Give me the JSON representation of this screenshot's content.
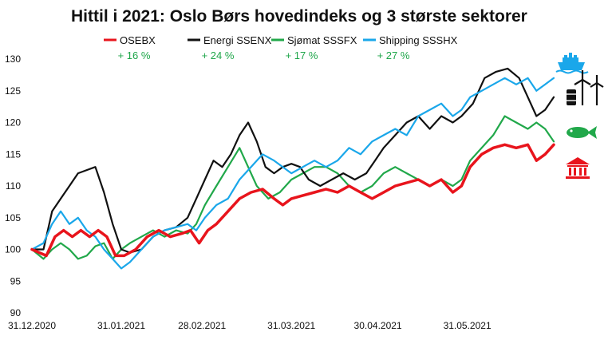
{
  "chart_data": {
    "type": "line",
    "title": "Hittil i 2021: Oslo Børs hovedindeks og 3 største sektorer",
    "xlabel": "",
    "ylabel": "",
    "ylim": [
      90,
      130
    ],
    "yticks": [
      90,
      95,
      100,
      105,
      110,
      115,
      120,
      125,
      130
    ],
    "xrange": [
      "2020-12-31",
      "2021-06-30"
    ],
    "xtick_labels": [
      {
        "date": "2020-12-31",
        "label": "31.12.2020"
      },
      {
        "date": "2021-01-31",
        "label": "31.01.2021"
      },
      {
        "date": "2021-02-28",
        "label": "28.02.2021"
      },
      {
        "date": "2021-03-31",
        "label": "31.03.2021"
      },
      {
        "date": "2021-04-30",
        "label": "30.04.2021"
      },
      {
        "date": "2021-05-31",
        "label": "31.05.2021"
      }
    ],
    "grid": false,
    "legend_position": "top",
    "series": [
      {
        "name": "OSEBX",
        "change": "+ 16 %",
        "color": "#e8141c",
        "icon": "bank-icon",
        "points": [
          [
            "2020-12-31",
            100
          ],
          [
            "2021-01-05",
            99
          ],
          [
            "2021-01-08",
            102
          ],
          [
            "2021-01-11",
            103
          ],
          [
            "2021-01-14",
            102
          ],
          [
            "2021-01-17",
            103
          ],
          [
            "2021-01-20",
            102
          ],
          [
            "2021-01-23",
            103
          ],
          [
            "2021-01-26",
            102
          ],
          [
            "2021-01-29",
            99
          ],
          [
            "2021-02-01",
            99
          ],
          [
            "2021-02-05",
            100
          ],
          [
            "2021-02-09",
            102
          ],
          [
            "2021-02-13",
            103
          ],
          [
            "2021-02-17",
            102
          ],
          [
            "2021-02-21",
            102.5
          ],
          [
            "2021-02-24",
            103
          ],
          [
            "2021-02-27",
            101
          ],
          [
            "2021-03-02",
            103
          ],
          [
            "2021-03-05",
            104
          ],
          [
            "2021-03-09",
            106
          ],
          [
            "2021-03-13",
            108
          ],
          [
            "2021-03-17",
            109
          ],
          [
            "2021-03-21",
            109.5
          ],
          [
            "2021-03-25",
            108
          ],
          [
            "2021-03-28",
            107
          ],
          [
            "2021-03-31",
            108
          ],
          [
            "2021-04-04",
            108.5
          ],
          [
            "2021-04-08",
            109
          ],
          [
            "2021-04-12",
            109.5
          ],
          [
            "2021-04-16",
            109
          ],
          [
            "2021-04-20",
            110
          ],
          [
            "2021-04-24",
            109
          ],
          [
            "2021-04-28",
            108
          ],
          [
            "2021-05-02",
            109
          ],
          [
            "2021-05-06",
            110
          ],
          [
            "2021-05-10",
            110.5
          ],
          [
            "2021-05-14",
            111
          ],
          [
            "2021-05-18",
            110
          ],
          [
            "2021-05-22",
            111
          ],
          [
            "2021-05-26",
            109
          ],
          [
            "2021-05-29",
            110
          ],
          [
            "2021-06-01",
            113
          ],
          [
            "2021-06-05",
            115
          ],
          [
            "2021-06-09",
            116
          ],
          [
            "2021-06-13",
            116.5
          ],
          [
            "2021-06-17",
            116
          ],
          [
            "2021-06-21",
            116.5
          ],
          [
            "2021-06-24",
            114
          ],
          [
            "2021-06-27",
            115
          ],
          [
            "2021-06-30",
            116.5
          ]
        ]
      },
      {
        "name": "Energi SSENX",
        "change": "+ 24 %",
        "color": "#111111",
        "icon": "energy-icon",
        "points": [
          [
            "2020-12-31",
            100
          ],
          [
            "2021-01-04",
            100
          ],
          [
            "2021-01-07",
            106
          ],
          [
            "2021-01-10",
            108
          ],
          [
            "2021-01-13",
            110
          ],
          [
            "2021-01-16",
            112
          ],
          [
            "2021-01-19",
            112.5
          ],
          [
            "2021-01-22",
            113
          ],
          [
            "2021-01-25",
            109
          ],
          [
            "2021-01-28",
            104
          ],
          [
            "2021-01-31",
            100
          ],
          [
            "2021-02-03",
            99.5
          ],
          [
            "2021-02-07",
            100
          ],
          [
            "2021-02-11",
            102
          ],
          [
            "2021-02-15",
            103
          ],
          [
            "2021-02-19",
            103.5
          ],
          [
            "2021-02-23",
            105
          ],
          [
            "2021-02-26",
            108
          ],
          [
            "2021-03-01",
            111
          ],
          [
            "2021-03-04",
            114
          ],
          [
            "2021-03-07",
            113
          ],
          [
            "2021-03-10",
            115
          ],
          [
            "2021-03-13",
            118
          ],
          [
            "2021-03-16",
            120
          ],
          [
            "2021-03-19",
            117
          ],
          [
            "2021-03-22",
            113
          ],
          [
            "2021-03-25",
            112
          ],
          [
            "2021-03-28",
            113
          ],
          [
            "2021-03-31",
            113.5
          ],
          [
            "2021-04-03",
            113
          ],
          [
            "2021-04-06",
            111
          ],
          [
            "2021-04-10",
            110
          ],
          [
            "2021-04-14",
            111
          ],
          [
            "2021-04-18",
            112
          ],
          [
            "2021-04-22",
            111
          ],
          [
            "2021-04-26",
            112
          ],
          [
            "2021-04-29",
            114
          ],
          [
            "2021-05-02",
            116
          ],
          [
            "2021-05-06",
            118
          ],
          [
            "2021-05-10",
            120
          ],
          [
            "2021-05-14",
            121
          ],
          [
            "2021-05-18",
            119
          ],
          [
            "2021-05-22",
            121
          ],
          [
            "2021-05-26",
            120
          ],
          [
            "2021-05-29",
            121
          ],
          [
            "2021-06-02",
            123
          ],
          [
            "2021-06-06",
            127
          ],
          [
            "2021-06-10",
            128
          ],
          [
            "2021-06-14",
            128.5
          ],
          [
            "2021-06-18",
            127
          ],
          [
            "2021-06-21",
            124
          ],
          [
            "2021-06-24",
            121
          ],
          [
            "2021-06-27",
            122
          ],
          [
            "2021-06-30",
            124
          ]
        ]
      },
      {
        "name": "Sjømat SSSFX",
        "change": "+ 17 %",
        "color": "#21a84a",
        "icon": "fish-icon",
        "points": [
          [
            "2020-12-31",
            100
          ],
          [
            "2021-01-04",
            98.5
          ],
          [
            "2021-01-07",
            100
          ],
          [
            "2021-01-10",
            101
          ],
          [
            "2021-01-13",
            100
          ],
          [
            "2021-01-16",
            98.5
          ],
          [
            "2021-01-19",
            99
          ],
          [
            "2021-01-22",
            100.5
          ],
          [
            "2021-01-25",
            101
          ],
          [
            "2021-01-28",
            98.5
          ],
          [
            "2021-01-31",
            100
          ],
          [
            "2021-02-03",
            101
          ],
          [
            "2021-02-07",
            102
          ],
          [
            "2021-02-11",
            103
          ],
          [
            "2021-02-15",
            102
          ],
          [
            "2021-02-19",
            103
          ],
          [
            "2021-02-23",
            102.5
          ],
          [
            "2021-02-26",
            104
          ],
          [
            "2021-03-01",
            107
          ],
          [
            "2021-03-05",
            110
          ],
          [
            "2021-03-09",
            113
          ],
          [
            "2021-03-13",
            116
          ],
          [
            "2021-03-16",
            113
          ],
          [
            "2021-03-19",
            110
          ],
          [
            "2021-03-23",
            108
          ],
          [
            "2021-03-27",
            109
          ],
          [
            "2021-03-31",
            111
          ],
          [
            "2021-04-04",
            112
          ],
          [
            "2021-04-08",
            113
          ],
          [
            "2021-04-12",
            113
          ],
          [
            "2021-04-16",
            112
          ],
          [
            "2021-04-20",
            110
          ],
          [
            "2021-04-24",
            109
          ],
          [
            "2021-04-28",
            110
          ],
          [
            "2021-05-02",
            112
          ],
          [
            "2021-05-06",
            113
          ],
          [
            "2021-05-10",
            112
          ],
          [
            "2021-05-14",
            111
          ],
          [
            "2021-05-18",
            110
          ],
          [
            "2021-05-22",
            111
          ],
          [
            "2021-05-26",
            110
          ],
          [
            "2021-05-29",
            111
          ],
          [
            "2021-06-01",
            114
          ],
          [
            "2021-06-05",
            116
          ],
          [
            "2021-06-09",
            118
          ],
          [
            "2021-06-13",
            121
          ],
          [
            "2021-06-17",
            120
          ],
          [
            "2021-06-21",
            119
          ],
          [
            "2021-06-24",
            120
          ],
          [
            "2021-06-27",
            119
          ],
          [
            "2021-06-30",
            117
          ]
        ]
      },
      {
        "name": "Shipping SSSHX",
        "change": "+ 27 %",
        "color": "#1aa7ea",
        "icon": "ship-icon",
        "points": [
          [
            "2020-12-31",
            100
          ],
          [
            "2021-01-04",
            101
          ],
          [
            "2021-01-07",
            104
          ],
          [
            "2021-01-10",
            106
          ],
          [
            "2021-01-13",
            104
          ],
          [
            "2021-01-16",
            105
          ],
          [
            "2021-01-19",
            103
          ],
          [
            "2021-01-22",
            102
          ],
          [
            "2021-01-25",
            100
          ],
          [
            "2021-01-28",
            98.5
          ],
          [
            "2021-01-31",
            97
          ],
          [
            "2021-02-03",
            98
          ],
          [
            "2021-02-07",
            100
          ],
          [
            "2021-02-11",
            102
          ],
          [
            "2021-02-15",
            103
          ],
          [
            "2021-02-19",
            103.5
          ],
          [
            "2021-02-23",
            104
          ],
          [
            "2021-02-26",
            103
          ],
          [
            "2021-03-01",
            105
          ],
          [
            "2021-03-05",
            107
          ],
          [
            "2021-03-09",
            108
          ],
          [
            "2021-03-13",
            111
          ],
          [
            "2021-03-17",
            113
          ],
          [
            "2021-03-21",
            115
          ],
          [
            "2021-03-25",
            114
          ],
          [
            "2021-03-28",
            113
          ],
          [
            "2021-03-31",
            112
          ],
          [
            "2021-04-04",
            113
          ],
          [
            "2021-04-08",
            114
          ],
          [
            "2021-04-12",
            113
          ],
          [
            "2021-04-16",
            114
          ],
          [
            "2021-04-20",
            116
          ],
          [
            "2021-04-24",
            115
          ],
          [
            "2021-04-28",
            117
          ],
          [
            "2021-05-02",
            118
          ],
          [
            "2021-05-06",
            119
          ],
          [
            "2021-05-10",
            118
          ],
          [
            "2021-05-14",
            121
          ],
          [
            "2021-05-18",
            122
          ],
          [
            "2021-05-22",
            123
          ],
          [
            "2021-05-26",
            121
          ],
          [
            "2021-05-29",
            122
          ],
          [
            "2021-06-01",
            124
          ],
          [
            "2021-06-05",
            125
          ],
          [
            "2021-06-09",
            126
          ],
          [
            "2021-06-13",
            127
          ],
          [
            "2021-06-17",
            126
          ],
          [
            "2021-06-21",
            127
          ],
          [
            "2021-06-24",
            125
          ],
          [
            "2021-06-27",
            126
          ],
          [
            "2021-06-30",
            127
          ]
        ]
      }
    ]
  }
}
